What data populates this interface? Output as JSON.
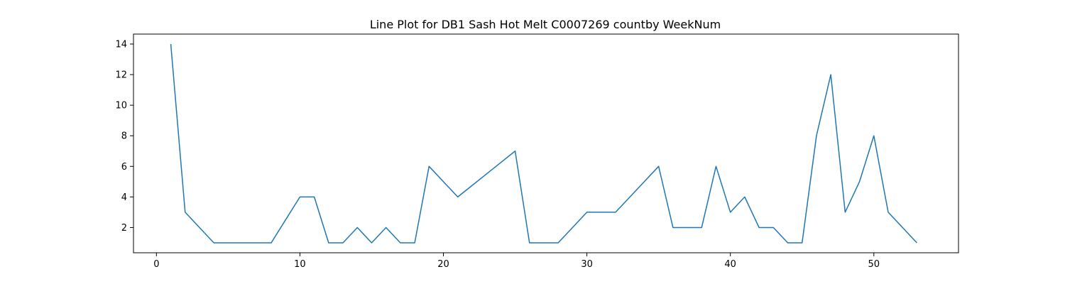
{
  "chart_data": {
    "type": "line",
    "title": "Line Plot for DB1 Sash Hot Melt C0007269 countby WeekNum",
    "xlabel": "",
    "ylabel": "",
    "xlim": [
      -1.6,
      55.9
    ],
    "ylim": [
      0.35,
      14.65
    ],
    "x_ticks": [
      0,
      10,
      20,
      30,
      40,
      50
    ],
    "y_ticks": [
      2,
      4,
      6,
      8,
      10,
      12,
      14
    ],
    "grid": false,
    "line_color": "#1f77b4",
    "series": [
      {
        "x": [
          1,
          2,
          3,
          4,
          5,
          6,
          7,
          8,
          9,
          10,
          11,
          12,
          13,
          14,
          15,
          16,
          17,
          18,
          19,
          20,
          21,
          22,
          23,
          24,
          25,
          26,
          27,
          28,
          29,
          30,
          31,
          32,
          33,
          34,
          35,
          36,
          37,
          38,
          39,
          40,
          41,
          42,
          43,
          44,
          45,
          46,
          47,
          48,
          49,
          50,
          51,
          52,
          53
        ],
        "values": [
          14,
          3,
          2,
          1,
          1,
          1,
          1,
          1,
          2.5,
          4,
          4,
          1,
          1,
          2,
          1,
          2,
          1,
          1,
          6,
          5,
          4,
          4.75,
          5.5,
          6.25,
          7,
          1,
          1,
          1,
          2,
          3,
          3,
          3,
          4,
          5,
          6,
          2,
          2,
          2,
          6,
          3,
          4,
          2,
          2,
          1,
          1,
          8,
          12,
          3,
          5,
          8,
          3,
          2,
          1
        ]
      }
    ]
  }
}
